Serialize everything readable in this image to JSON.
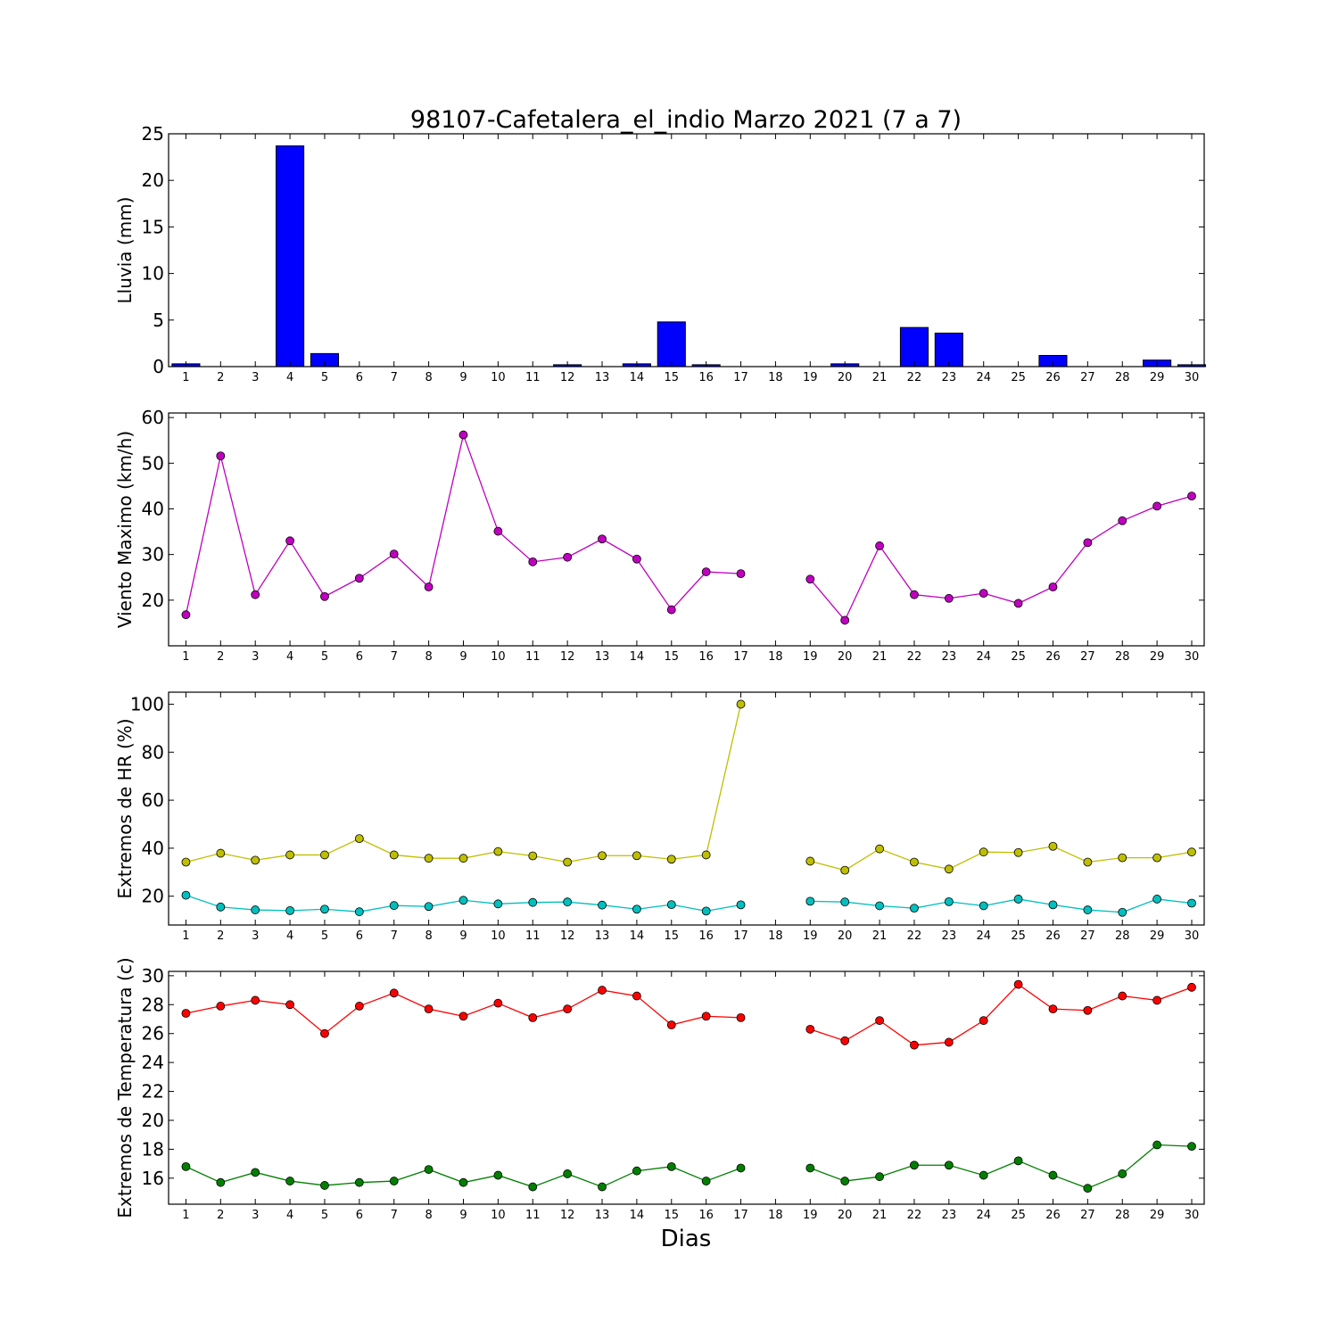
{
  "chart_data": {
    "title": "98107-Cafetalera_el_indio Marzo 2021  (7 a 7)",
    "xlabel": "Dias",
    "days": [
      1,
      2,
      3,
      4,
      5,
      6,
      7,
      8,
      9,
      10,
      11,
      12,
      13,
      14,
      15,
      16,
      17,
      18,
      19,
      20,
      21,
      22,
      23,
      24,
      25,
      26,
      27,
      28,
      29,
      30
    ],
    "panels": [
      {
        "id": "rain",
        "type": "bar",
        "ylabel": "Lluvia (mm)",
        "ylim": [
          0,
          25
        ],
        "yticks": [
          0,
          5,
          10,
          15,
          20,
          25
        ],
        "series": [
          {
            "color": "#0000ff",
            "values": [
              0.3,
              0,
              0,
              23.7,
              1.4,
              0,
              0,
              0,
              0,
              0,
              0,
              0.2,
              0,
              0.3,
              4.8,
              0.2,
              0,
              0,
              0,
              0.3,
              0,
              4.2,
              3.6,
              0,
              0,
              1.2,
              0,
              0,
              0.7,
              0.2
            ]
          }
        ]
      },
      {
        "id": "wind",
        "type": "line",
        "ylabel": "Viento Maximo (km/h)",
        "ylim": [
          10,
          61
        ],
        "yticks": [
          20,
          30,
          40,
          50,
          60
        ],
        "series": [
          {
            "color": "#bf00bf",
            "values": [
              16.8,
              51.6,
              21.2,
              33.0,
              20.8,
              24.8,
              30.1,
              22.9,
              56.2,
              35.1,
              28.4,
              29.4,
              33.4,
              29.0,
              17.9,
              26.2,
              25.8,
              null,
              24.6,
              15.6,
              31.9,
              21.2,
              20.4,
              21.5,
              19.3,
              22.9,
              32.6,
              37.4,
              40.6,
              42.8
            ]
          }
        ]
      },
      {
        "id": "hr",
        "type": "line",
        "ylabel": "Extremos de HR (%)",
        "ylim": [
          8,
          105
        ],
        "yticks": [
          20,
          40,
          60,
          80,
          100
        ],
        "series": [
          {
            "color": "#bfbf00",
            "values": [
              34.2,
              37.9,
              35.0,
              37.2,
              37.2,
              44.0,
              37.2,
              35.8,
              35.8,
              38.6,
              36.8,
              34.2,
              36.9,
              36.9,
              35.4,
              37.2,
              100.0,
              null,
              34.6,
              30.8,
              39.7,
              34.2,
              31.3,
              38.4,
              38.2,
              40.8,
              34.2,
              36.0,
              36.0,
              38.4
            ]
          },
          {
            "color": "#00bfbf",
            "values": [
              20.4,
              15.5,
              14.3,
              14.0,
              14.6,
              13.5,
              16.1,
              15.7,
              18.3,
              16.8,
              17.4,
              17.6,
              16.3,
              14.6,
              16.5,
              13.8,
              16.4,
              null,
              17.9,
              17.6,
              16.0,
              15.0,
              17.7,
              16.0,
              18.8,
              16.4,
              14.3,
              13.3,
              18.8,
              17.1
            ]
          }
        ]
      },
      {
        "id": "temp",
        "type": "line",
        "ylabel": "Extremos de Temperatura (c)",
        "ylim": [
          14.2,
          30.3
        ],
        "yticks": [
          16,
          18,
          20,
          22,
          24,
          26,
          28,
          30
        ],
        "series": [
          {
            "color": "#ff0000",
            "values": [
              27.4,
              27.9,
              28.3,
              28.0,
              26.0,
              27.9,
              28.8,
              27.7,
              27.2,
              28.1,
              27.1,
              27.7,
              29.0,
              28.6,
              26.6,
              27.2,
              27.1,
              null,
              26.3,
              25.5,
              26.9,
              25.2,
              25.4,
              26.9,
              29.4,
              27.7,
              27.6,
              28.6,
              28.3,
              29.2
            ]
          },
          {
            "color": "#007f00",
            "values": [
              16.8,
              15.7,
              16.4,
              15.8,
              15.5,
              15.7,
              15.8,
              16.6,
              15.7,
              16.2,
              15.4,
              16.3,
              15.4,
              16.5,
              16.8,
              15.8,
              16.7,
              null,
              16.7,
              15.8,
              16.1,
              16.9,
              16.9,
              16.2,
              17.2,
              16.2,
              15.3,
              16.3,
              18.3,
              18.2
            ]
          }
        ]
      }
    ]
  }
}
